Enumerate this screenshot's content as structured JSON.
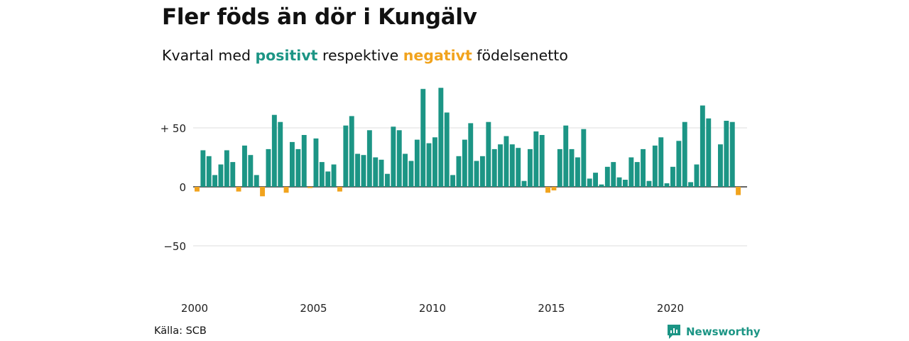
{
  "title": "Fler föds än dör i Kungälv",
  "subtitle": {
    "prefix": "Kvartal med ",
    "positive": "positivt",
    "middle": " respektive ",
    "negative": "negativt",
    "suffix": " födelsenetto"
  },
  "source": "Källa: SCB",
  "brand": "Newsworthy",
  "colors": {
    "positive": "#1c9585",
    "negative": "#f1a31d",
    "grid": "#dddddd",
    "axis": "#333333"
  },
  "chart_data": {
    "type": "bar",
    "title": "Fler föds än dör i Kungälv",
    "x_start": 2000,
    "x_step": 0.25,
    "ylim": [
      -50,
      100
    ],
    "y_ticks": [
      {
        "value": 50,
        "label": "+ 50"
      },
      {
        "value": 0,
        "label": "0"
      },
      {
        "value": -50,
        "label": "−50"
      }
    ],
    "x_ticks": [
      {
        "value": 2000,
        "label": "2000"
      },
      {
        "value": 2005,
        "label": "2005"
      },
      {
        "value": 2010,
        "label": "2010"
      },
      {
        "value": 2015,
        "label": "2015"
      },
      {
        "value": 2020,
        "label": "2020"
      }
    ],
    "grid": true,
    "values": [
      -4,
      31,
      26,
      10,
      19,
      31,
      21,
      -4,
      35,
      27,
      10,
      -8,
      32,
      61,
      55,
      -5,
      38,
      32,
      44,
      -1,
      41,
      21,
      13,
      19,
      -4,
      52,
      60,
      28,
      27,
      48,
      25,
      23,
      11,
      51,
      48,
      28,
      22,
      40,
      83,
      37,
      42,
      84,
      63,
      10,
      26,
      40,
      54,
      22,
      26,
      55,
      32,
      36,
      43,
      36,
      33,
      5,
      32,
      47,
      44,
      -5,
      -3,
      32,
      52,
      32,
      25,
      49,
      7,
      12,
      2,
      17,
      21,
      8,
      6,
      25,
      21,
      32,
      5,
      35,
      42,
      3,
      17,
      39,
      55,
      4,
      19,
      69,
      58,
      0,
      36,
      56,
      55,
      -7
    ]
  }
}
